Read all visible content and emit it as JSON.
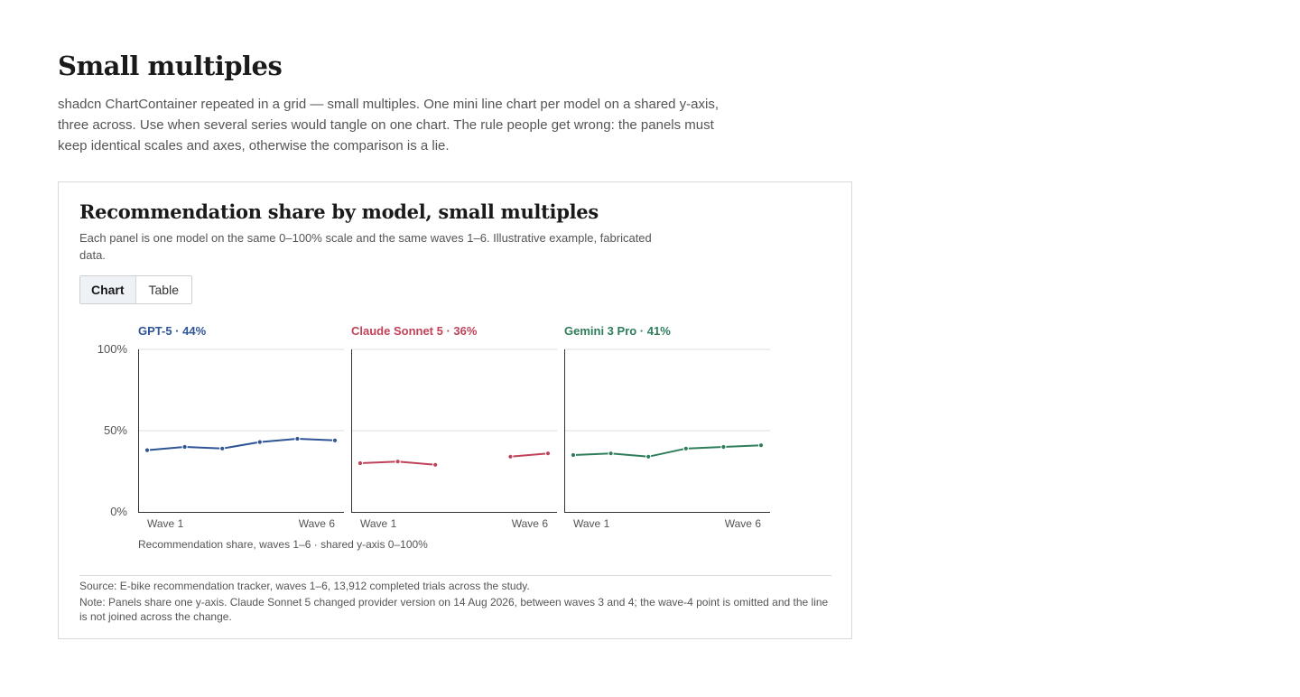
{
  "page": {
    "title": "Small multiples",
    "intro": "shadcn ChartContainer repeated in a grid — small multiples. One mini line chart per model on a shared y-axis, three across. Use when several series would tangle on one chart. The rule people get wrong: the panels must keep identical scales and axes, otherwise the comparison is a lie."
  },
  "card": {
    "title": "Recommendation share by model, small multiples",
    "description": "Each panel is one model on the same 0–100% scale and the same waves 1–6. Illustrative example, fabricated data.",
    "toggle": {
      "chart_label": "Chart",
      "table_label": "Table",
      "selected": "Chart"
    },
    "caption": "Recommendation share, waves 1–6 · shared y-axis 0–100%",
    "source": "Source: E-bike recommendation tracker, waves 1–6, 13,912 completed trials across the study.",
    "note": "Note: Panels share one y-axis. Claude Sonnet 5 changed provider version on 14 Aug 2026, between waves 3 and 4; the wave-4 point is omitted and the line is not joined across the change."
  },
  "chart_data": {
    "type": "line",
    "x": [
      1,
      2,
      3,
      4,
      5,
      6
    ],
    "x_tick_labels": [
      "Wave 1",
      "Wave 6"
    ],
    "ylim": [
      0,
      100
    ],
    "y_ticks": [
      0,
      50,
      100
    ],
    "y_tick_labels": [
      "0%",
      "50%",
      "100%"
    ],
    "grid": true,
    "series": [
      {
        "name": "GPT-5",
        "title": "GPT-5 · 44%",
        "color": "#2f5597",
        "values": [
          38,
          40,
          39,
          43,
          45,
          44
        ]
      },
      {
        "name": "Claude Sonnet 5",
        "title": "Claude Sonnet 5 · 36%",
        "color": "#c0435a",
        "values": [
          30,
          31,
          29,
          null,
          34,
          36
        ]
      },
      {
        "name": "Gemini 3 Pro",
        "title": "Gemini 3 Pro · 41%",
        "color": "#2e7d5b",
        "values": [
          35,
          36,
          34,
          39,
          40,
          41
        ]
      }
    ]
  }
}
